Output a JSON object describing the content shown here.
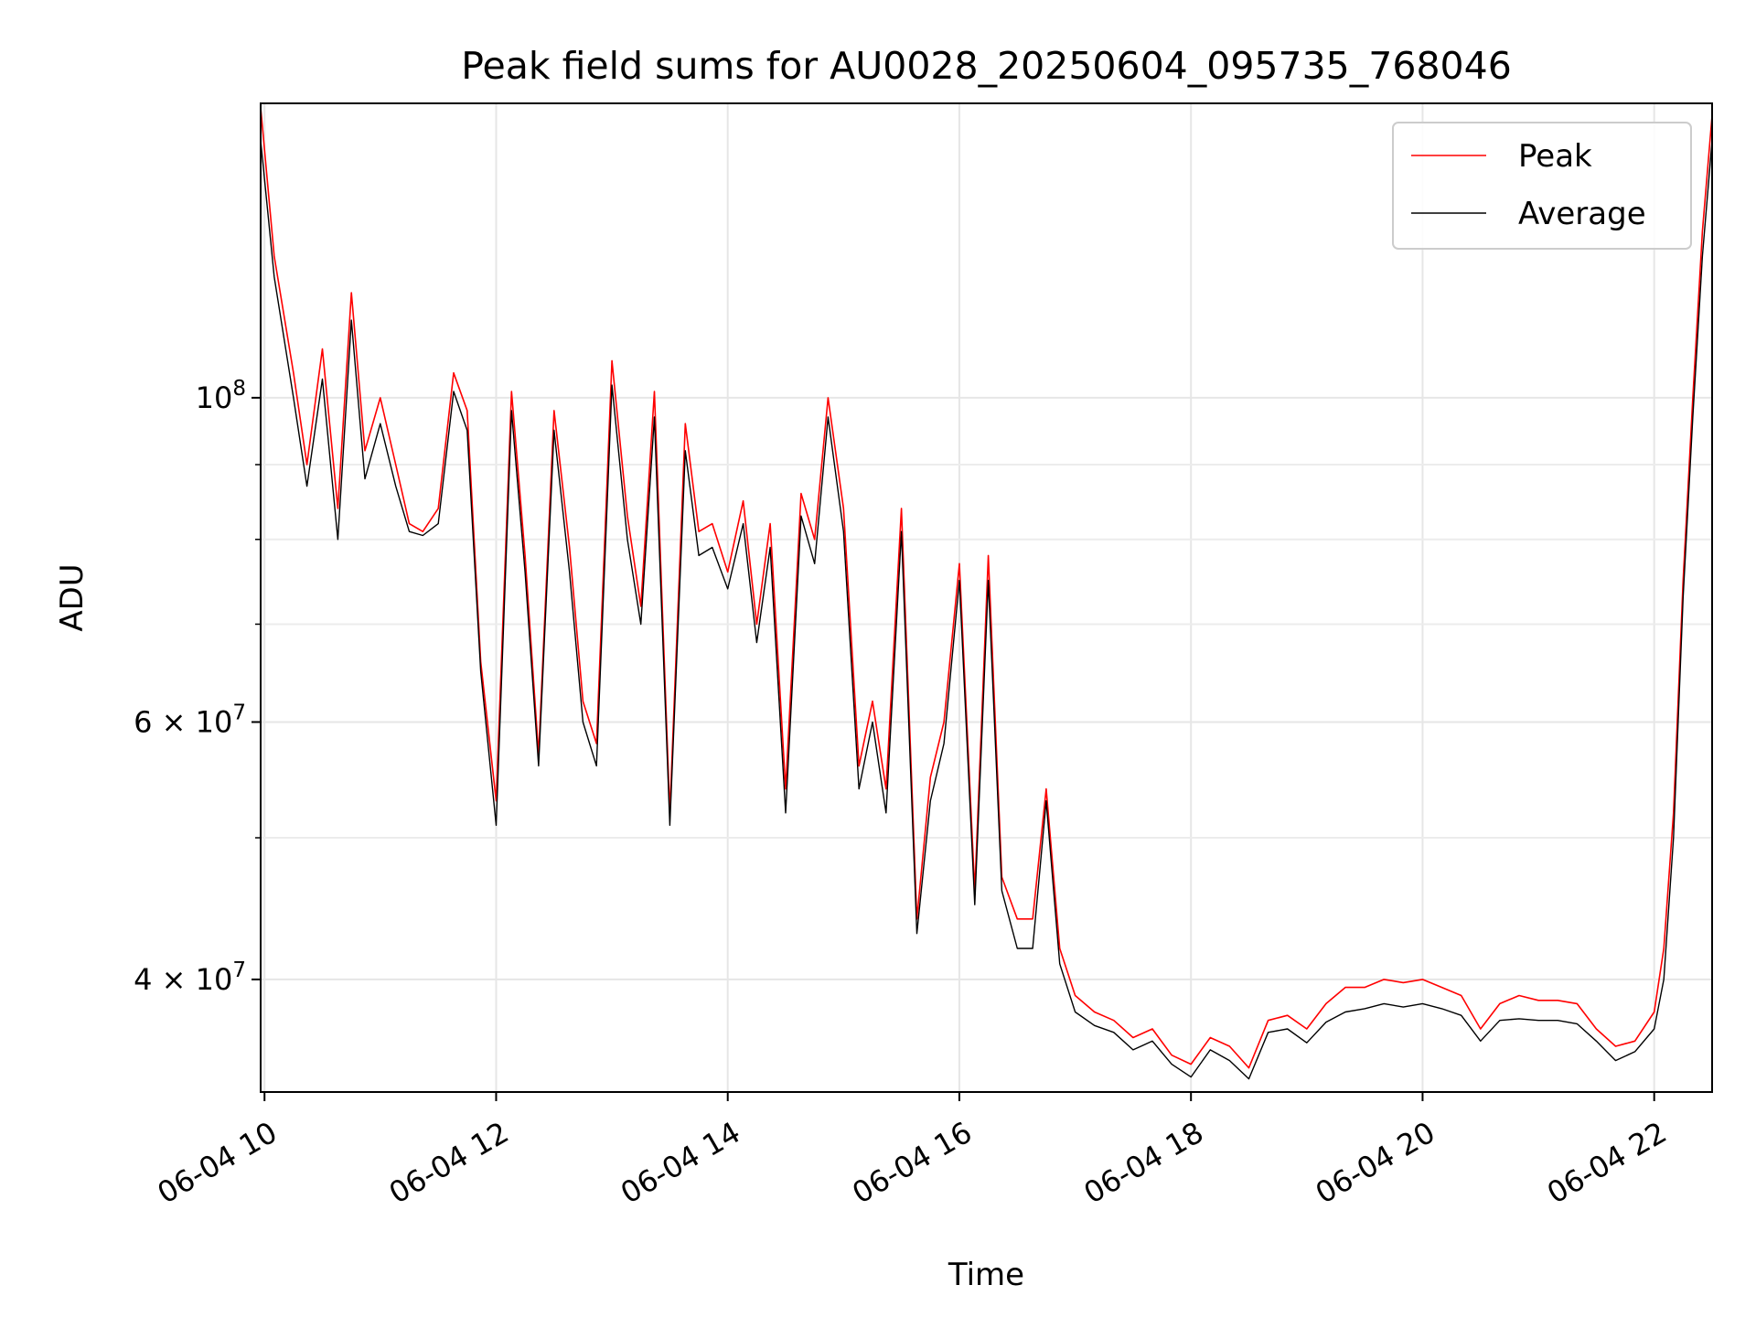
{
  "chart_data": {
    "type": "line",
    "title": "Peak field sums for AU0028_20250604_095735_768046",
    "xlabel": "Time",
    "ylabel": "ADU",
    "yscale": "log",
    "xlim": [
      "06-04 09:58",
      "06-04 22:30"
    ],
    "ylim": [
      33500000,
      159000000
    ],
    "x_ticks": [
      "06-04 10",
      "06-04 12",
      "06-04 14",
      "06-04 16",
      "06-04 18",
      "06-04 20",
      "06-04 22"
    ],
    "y_major_ticks": [
      {
        "value": 100000000,
        "base": "10",
        "exp": "8",
        "mult": ""
      },
      {
        "value": 60000000,
        "base": "10",
        "exp": "7",
        "mult": "6"
      },
      {
        "value": 40000000,
        "base": "10",
        "exp": "7",
        "mult": "4"
      }
    ],
    "y_minor_ticks": [
      90000000,
      80000000,
      70000000,
      50000000
    ],
    "grid": true,
    "legend": {
      "position": "top-right"
    },
    "series": [
      {
        "name": "Peak",
        "color": "#ff0000",
        "x": [
          "06-04 09:58",
          "06-04 10:05",
          "06-04 10:15",
          "06-04 10:22",
          "06-04 10:30",
          "06-04 10:38",
          "06-04 10:45",
          "06-04 10:52",
          "06-04 11:00",
          "06-04 11:08",
          "06-04 11:15",
          "06-04 11:22",
          "06-04 11:30",
          "06-04 11:38",
          "06-04 11:45",
          "06-04 11:52",
          "06-04 12:00",
          "06-04 12:08",
          "06-04 12:15",
          "06-04 12:22",
          "06-04 12:30",
          "06-04 12:38",
          "06-04 12:45",
          "06-04 12:52",
          "06-04 13:00",
          "06-04 13:08",
          "06-04 13:15",
          "06-04 13:22",
          "06-04 13:30",
          "06-04 13:38",
          "06-04 13:45",
          "06-04 13:52",
          "06-04 14:00",
          "06-04 14:08",
          "06-04 14:15",
          "06-04 14:22",
          "06-04 14:30",
          "06-04 14:38",
          "06-04 14:45",
          "06-04 14:52",
          "06-04 15:00",
          "06-04 15:08",
          "06-04 15:15",
          "06-04 15:22",
          "06-04 15:30",
          "06-04 15:38",
          "06-04 15:45",
          "06-04 15:52",
          "06-04 16:00",
          "06-04 16:08",
          "06-04 16:15",
          "06-04 16:22",
          "06-04 16:30",
          "06-04 16:38",
          "06-04 16:45",
          "06-04 16:52",
          "06-04 17:00",
          "06-04 17:10",
          "06-04 17:20",
          "06-04 17:30",
          "06-04 17:40",
          "06-04 17:50",
          "06-04 18:00",
          "06-04 18:10",
          "06-04 18:20",
          "06-04 18:30",
          "06-04 18:40",
          "06-04 18:50",
          "06-04 19:00",
          "06-04 19:10",
          "06-04 19:20",
          "06-04 19:30",
          "06-04 19:40",
          "06-04 19:50",
          "06-04 20:00",
          "06-04 20:10",
          "06-04 20:20",
          "06-04 20:30",
          "06-04 20:40",
          "06-04 20:50",
          "06-04 21:00",
          "06-04 21:10",
          "06-04 21:20",
          "06-04 21:30",
          "06-04 21:40",
          "06-04 21:50",
          "06-04 22:00",
          "06-04 22:05",
          "06-04 22:10",
          "06-04 22:15",
          "06-04 22:20",
          "06-04 22:25",
          "06-04 22:30"
        ],
        "values": [
          158000000,
          125000000,
          104000000,
          90000000,
          108000000,
          84000000,
          118000000,
          92000000,
          100000000,
          90000000,
          82000000,
          81000000,
          84000000,
          104000000,
          98000000,
          66000000,
          53000000,
          101000000,
          78000000,
          57000000,
          98000000,
          79000000,
          62000000,
          58000000,
          106000000,
          83000000,
          72000000,
          101000000,
          52000000,
          96000000,
          81000000,
          82000000,
          76000000,
          85000000,
          70000000,
          82000000,
          54000000,
          86000000,
          80000000,
          100000000,
          84000000,
          56000000,
          62000000,
          54000000,
          84000000,
          44000000,
          55000000,
          60000000,
          77000000,
          46000000,
          78000000,
          47000000,
          44000000,
          44000000,
          54000000,
          42000000,
          39000000,
          38000000,
          37500000,
          36500000,
          37000000,
          35500000,
          35000000,
          36500000,
          36000000,
          34800000,
          37500000,
          37800000,
          37000000,
          38500000,
          39500000,
          39500000,
          40000000,
          39800000,
          40000000,
          39500000,
          39000000,
          37000000,
          38500000,
          39000000,
          38700000,
          38700000,
          38500000,
          37000000,
          36000000,
          36300000,
          38000000,
          42000000,
          52000000,
          75000000,
          100000000,
          130000000,
          156000000
        ]
      },
      {
        "name": "Average",
        "color": "#000000",
        "x": [
          "06-04 09:58",
          "06-04 10:05",
          "06-04 10:15",
          "06-04 10:22",
          "06-04 10:30",
          "06-04 10:38",
          "06-04 10:45",
          "06-04 10:52",
          "06-04 11:00",
          "06-04 11:08",
          "06-04 11:15",
          "06-04 11:22",
          "06-04 11:30",
          "06-04 11:38",
          "06-04 11:45",
          "06-04 11:52",
          "06-04 12:00",
          "06-04 12:08",
          "06-04 12:15",
          "06-04 12:22",
          "06-04 12:30",
          "06-04 12:38",
          "06-04 12:45",
          "06-04 12:52",
          "06-04 13:00",
          "06-04 13:08",
          "06-04 13:15",
          "06-04 13:22",
          "06-04 13:30",
          "06-04 13:38",
          "06-04 13:45",
          "06-04 13:52",
          "06-04 14:00",
          "06-04 14:08",
          "06-04 14:15",
          "06-04 14:22",
          "06-04 14:30",
          "06-04 14:38",
          "06-04 14:45",
          "06-04 14:52",
          "06-04 15:00",
          "06-04 15:08",
          "06-04 15:15",
          "06-04 15:22",
          "06-04 15:30",
          "06-04 15:38",
          "06-04 15:45",
          "06-04 15:52",
          "06-04 16:00",
          "06-04 16:08",
          "06-04 16:15",
          "06-04 16:22",
          "06-04 16:30",
          "06-04 16:38",
          "06-04 16:45",
          "06-04 16:52",
          "06-04 17:00",
          "06-04 17:10",
          "06-04 17:20",
          "06-04 17:30",
          "06-04 17:40",
          "06-04 17:50",
          "06-04 18:00",
          "06-04 18:10",
          "06-04 18:20",
          "06-04 18:30",
          "06-04 18:40",
          "06-04 18:50",
          "06-04 19:00",
          "06-04 19:10",
          "06-04 19:20",
          "06-04 19:30",
          "06-04 19:40",
          "06-04 19:50",
          "06-04 20:00",
          "06-04 20:10",
          "06-04 20:20",
          "06-04 20:30",
          "06-04 20:40",
          "06-04 20:50",
          "06-04 21:00",
          "06-04 21:10",
          "06-04 21:20",
          "06-04 21:30",
          "06-04 21:40",
          "06-04 21:50",
          "06-04 22:00",
          "06-04 22:05",
          "06-04 22:10",
          "06-04 22:15",
          "06-04 22:20",
          "06-04 22:25",
          "06-04 22:30"
        ],
        "values": [
          150000000,
          121000000,
          100000000,
          87000000,
          103000000,
          80000000,
          113000000,
          88000000,
          96000000,
          87000000,
          81000000,
          80500000,
          82000000,
          101000000,
          95000000,
          65000000,
          51000000,
          98000000,
          76000000,
          56000000,
          95000000,
          76000000,
          60000000,
          56000000,
          102000000,
          80000000,
          70000000,
          97000000,
          51000000,
          92000000,
          78000000,
          79000000,
          74000000,
          82000000,
          68000000,
          79000000,
          52000000,
          83000000,
          77000000,
          97000000,
          81000000,
          54000000,
          60000000,
          52000000,
          81000000,
          43000000,
          53000000,
          58000000,
          75000000,
          45000000,
          75000000,
          46000000,
          42000000,
          42000000,
          53000000,
          41000000,
          38000000,
          37200000,
          36800000,
          35800000,
          36300000,
          35000000,
          34300000,
          35800000,
          35200000,
          34200000,
          36800000,
          37000000,
          36200000,
          37400000,
          38000000,
          38200000,
          38500000,
          38300000,
          38500000,
          38200000,
          37800000,
          36300000,
          37500000,
          37600000,
          37500000,
          37500000,
          37300000,
          36300000,
          35200000,
          35700000,
          37000000,
          40000000,
          50000000,
          73000000,
          97000000,
          125000000,
          150000000
        ]
      }
    ]
  }
}
